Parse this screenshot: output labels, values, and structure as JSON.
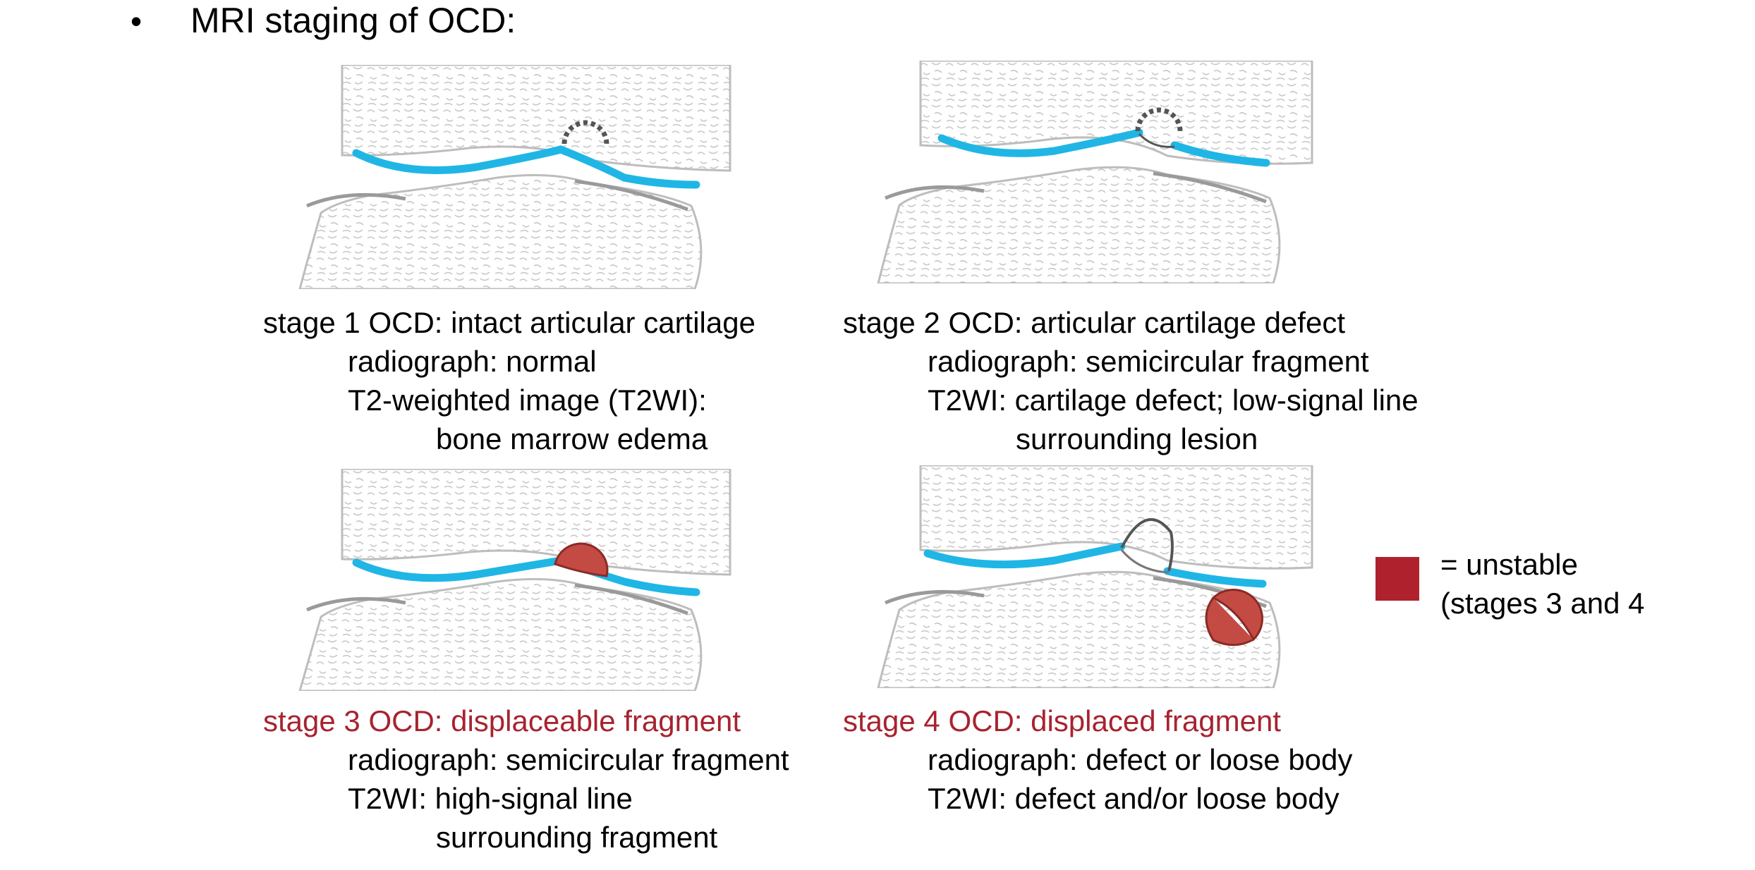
{
  "heading": {
    "bullet": "•",
    "text": "MRI staging of OCD:"
  },
  "colors": {
    "cartilage": "#1fb6e6",
    "fragment": "#c44a44",
    "unstable_label": "#a8232f",
    "legend_swatch": "#b0212e"
  },
  "stages": [
    {
      "title": "stage 1 OCD: intact articular cartilage",
      "lines": [
        "radiograph: normal",
        "T2-weighted  image (T2WI):",
        "bone marrow edema"
      ]
    },
    {
      "title": "stage 2 OCD: articular cartilage defect",
      "lines": [
        "radiograph: semicircular fragment",
        "T2WI: cartilage defect; low-signal line",
        "surrounding lesion"
      ]
    },
    {
      "title": "stage 3 OCD: displaceable fragment",
      "lines": [
        "radiograph: semicircular fragment",
        "T2WI: high-signal line",
        "surrounding fragment"
      ]
    },
    {
      "title": "stage 4 OCD: displaced fragment",
      "lines": [
        "radiograph: defect or loose body",
        "T2WI: defect and/or loose body"
      ]
    }
  ],
  "legend": {
    "line1": "= unstable",
    "line2": "(stages 3 and 4"
  }
}
